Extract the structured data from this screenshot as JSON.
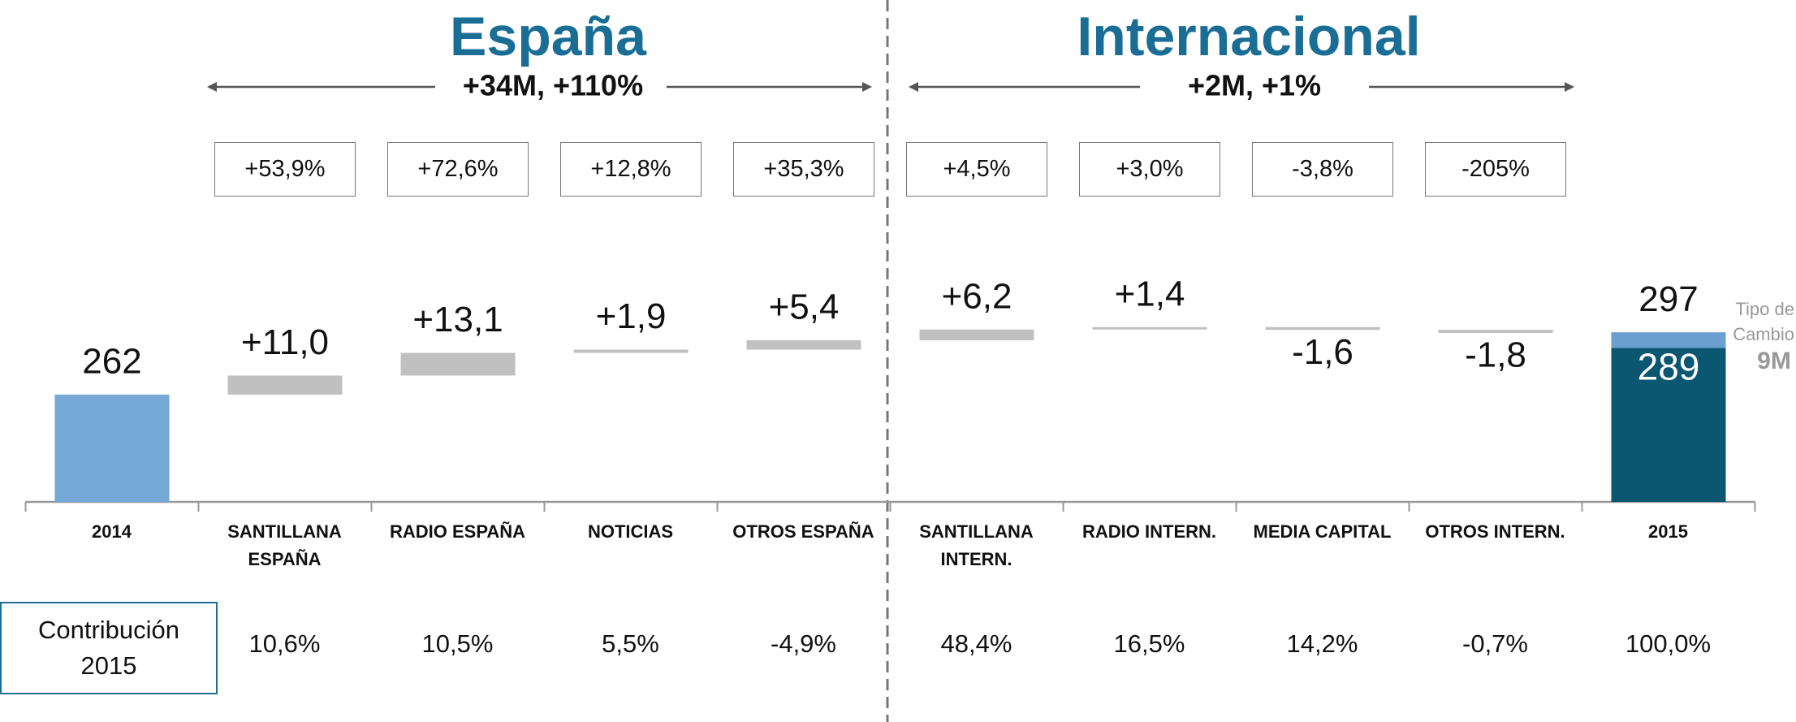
{
  "chart_data": {
    "type": "waterfall",
    "groups": [
      {
        "title": "España",
        "summary": "+34M, +110%"
      },
      {
        "title": "Internacional",
        "summary": "+2M, +1%"
      }
    ],
    "categories": [
      "2014",
      "SANTILLANA ESPAÑA",
      "RADIO ESPAÑA",
      "NOTICIAS",
      "OTROS ESPAÑA",
      "SANTILLANA INTERN.",
      "RADIO INTERN.",
      "MEDIA CAPITAL",
      "OTROS INTERN.",
      "2015"
    ],
    "values": [
      262,
      11.0,
      13.1,
      1.9,
      5.4,
      6.2,
      1.4,
      -1.6,
      -1.8,
      297
    ],
    "value_labels": [
      "262",
      "+11,0",
      "+13,1",
      "+1,9",
      "+5,4",
      "+6,2",
      "+1,4",
      "-1,6",
      "-1,8",
      "297"
    ],
    "growth": [
      null,
      "+53,9%",
      "+72,6%",
      "+12,8%",
      "+35,3%",
      "+4,5%",
      "+3,0%",
      "-3,8%",
      "-205%",
      null
    ],
    "total_breakdown": {
      "values": [
        289,
        9
      ],
      "labels": [
        "289",
        "9M"
      ],
      "name": [
        "Tipo de",
        "Cambio"
      ]
    },
    "contribution": {
      "label": "Contribución 2015",
      "values": [
        null,
        "10,6%",
        "10,5%",
        "5,5%",
        "-4,9%",
        "48,4%",
        "16,5%",
        "14,2%",
        "-0,7%",
        "100,0%"
      ]
    },
    "colors": {
      "start": "#76a9d8",
      "delta": "#c0c0c0",
      "total": "#0b5670",
      "fx": "#6a9fcf"
    },
    "ylim": [
      200,
      345
    ]
  }
}
